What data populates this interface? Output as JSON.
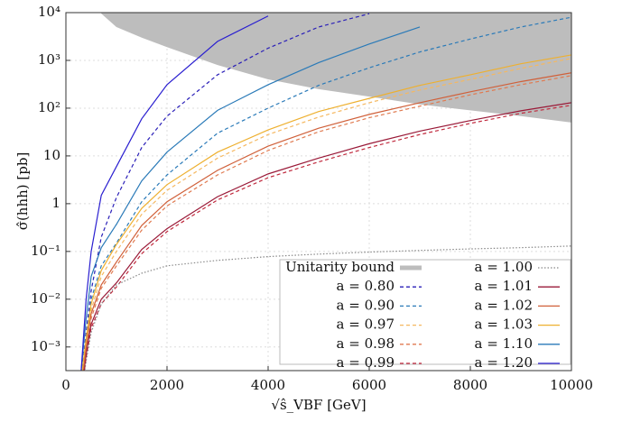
{
  "chart_data": {
    "type": "line",
    "xlabel": "√ŝ_VBF [GeV]",
    "ylabel": "σ̂(hhh) [pb]",
    "xlim": [
      0,
      10000
    ],
    "xticks": [
      0,
      2000,
      4000,
      6000,
      8000,
      10000
    ],
    "ylim": [
      0.00032,
      10000
    ],
    "log_y": true,
    "grid": true,
    "yticks": [
      {
        "value": 0.001,
        "label": "10⁻³"
      },
      {
        "value": 0.01,
        "label": "10⁻²"
      },
      {
        "value": 0.1,
        "label": "10⁻¹"
      },
      1,
      10,
      {
        "value": 100,
        "label": "10²"
      },
      {
        "value": 1000,
        "label": "10³"
      },
      {
        "value": 10000,
        "label": "10⁴"
      }
    ],
    "x": [
      300,
      400,
      500,
      700,
      1000,
      1500,
      2000,
      3000,
      4000,
      5000,
      6000,
      7000,
      8000,
      9000,
      10000
    ],
    "series": [
      {
        "name": "Unitarity bound",
        "color": "#bdbdbd",
        "style": "band",
        "values": [
          null,
          null,
          null,
          9500,
          5000,
          3000,
          1900,
          800,
          400,
          250,
          175,
          120,
          90,
          68,
          50
        ]
      },
      {
        "name": "a = 0.80",
        "color": "#2a1fb8",
        "style": "dashed",
        "values": [
          0.0002,
          0.002,
          0.015,
          0.2,
          1.35,
          15,
          68,
          500,
          1800,
          5000,
          9500,
          null,
          null,
          null,
          null
        ]
      },
      {
        "name": "a = 0.90",
        "color": "#2a7ab8",
        "style": "dashed",
        "values": [
          0.0002,
          0.0015,
          0.01,
          0.05,
          0.15,
          1.1,
          4,
          30,
          100,
          300,
          700,
          1500,
          2800,
          5000,
          8000
        ]
      },
      {
        "name": "a = 0.97",
        "color": "#f5b860",
        "style": "dashed",
        "values": [
          0.00015,
          0.0012,
          0.006,
          0.03,
          0.1,
          0.6,
          1.9,
          9,
          28,
          65,
          130,
          240,
          400,
          680,
          1100
        ]
      },
      {
        "name": "a = 0.98",
        "color": "#e07a50",
        "style": "dashed",
        "values": [
          0.0001,
          0.0008,
          0.004,
          0.017,
          0.05,
          0.28,
          0.9,
          4,
          13,
          32,
          63,
          110,
          190,
          310,
          480
        ]
      },
      {
        "name": "a = 0.99",
        "color": "#c0283c",
        "style": "dashed",
        "values": [
          0.0001,
          0.0006,
          0.0025,
          0.008,
          0.018,
          0.09,
          0.26,
          1.2,
          3.5,
          7.5,
          15,
          28,
          48,
          78,
          115
        ]
      },
      {
        "name": "a = 1.00",
        "color": "#888888",
        "style": "dotted",
        "values": [
          0.0001,
          0.0005,
          0.002,
          0.008,
          0.02,
          0.035,
          0.05,
          0.065,
          0.078,
          0.088,
          0.097,
          0.105,
          0.113,
          0.12,
          0.13
        ]
      },
      {
        "name": "a = 1.01",
        "color": "#9a1a38",
        "style": "solid",
        "values": [
          0.0001,
          0.0007,
          0.003,
          0.01,
          0.022,
          0.11,
          0.3,
          1.4,
          4.2,
          9,
          18,
          33,
          55,
          88,
          130
        ]
      },
      {
        "name": "a = 1.02",
        "color": "#d0603a",
        "style": "solid",
        "values": [
          0.00012,
          0.001,
          0.005,
          0.02,
          0.06,
          0.35,
          1.1,
          5,
          16,
          38,
          74,
          130,
          220,
          360,
          550
        ]
      },
      {
        "name": "a = 1.03",
        "color": "#eeb030",
        "style": "solid",
        "values": [
          0.0002,
          0.0015,
          0.008,
          0.04,
          0.14,
          0.8,
          2.5,
          12,
          35,
          85,
          160,
          300,
          500,
          850,
          1300
        ]
      },
      {
        "name": "a = 1.10",
        "color": "#2a7ab8",
        "style": "solid",
        "values": [
          0.0003,
          0.004,
          0.03,
          0.12,
          0.37,
          3,
          12,
          90,
          310,
          900,
          2200,
          5000,
          null,
          null,
          null
        ]
      },
      {
        "name": "a = 1.20",
        "color": "#2a1fd0",
        "style": "solid",
        "values": [
          0.0003,
          0.01,
          0.1,
          1.5,
          6,
          60,
          310,
          2500,
          8500,
          null,
          null,
          null,
          null,
          null,
          null
        ]
      }
    ]
  }
}
